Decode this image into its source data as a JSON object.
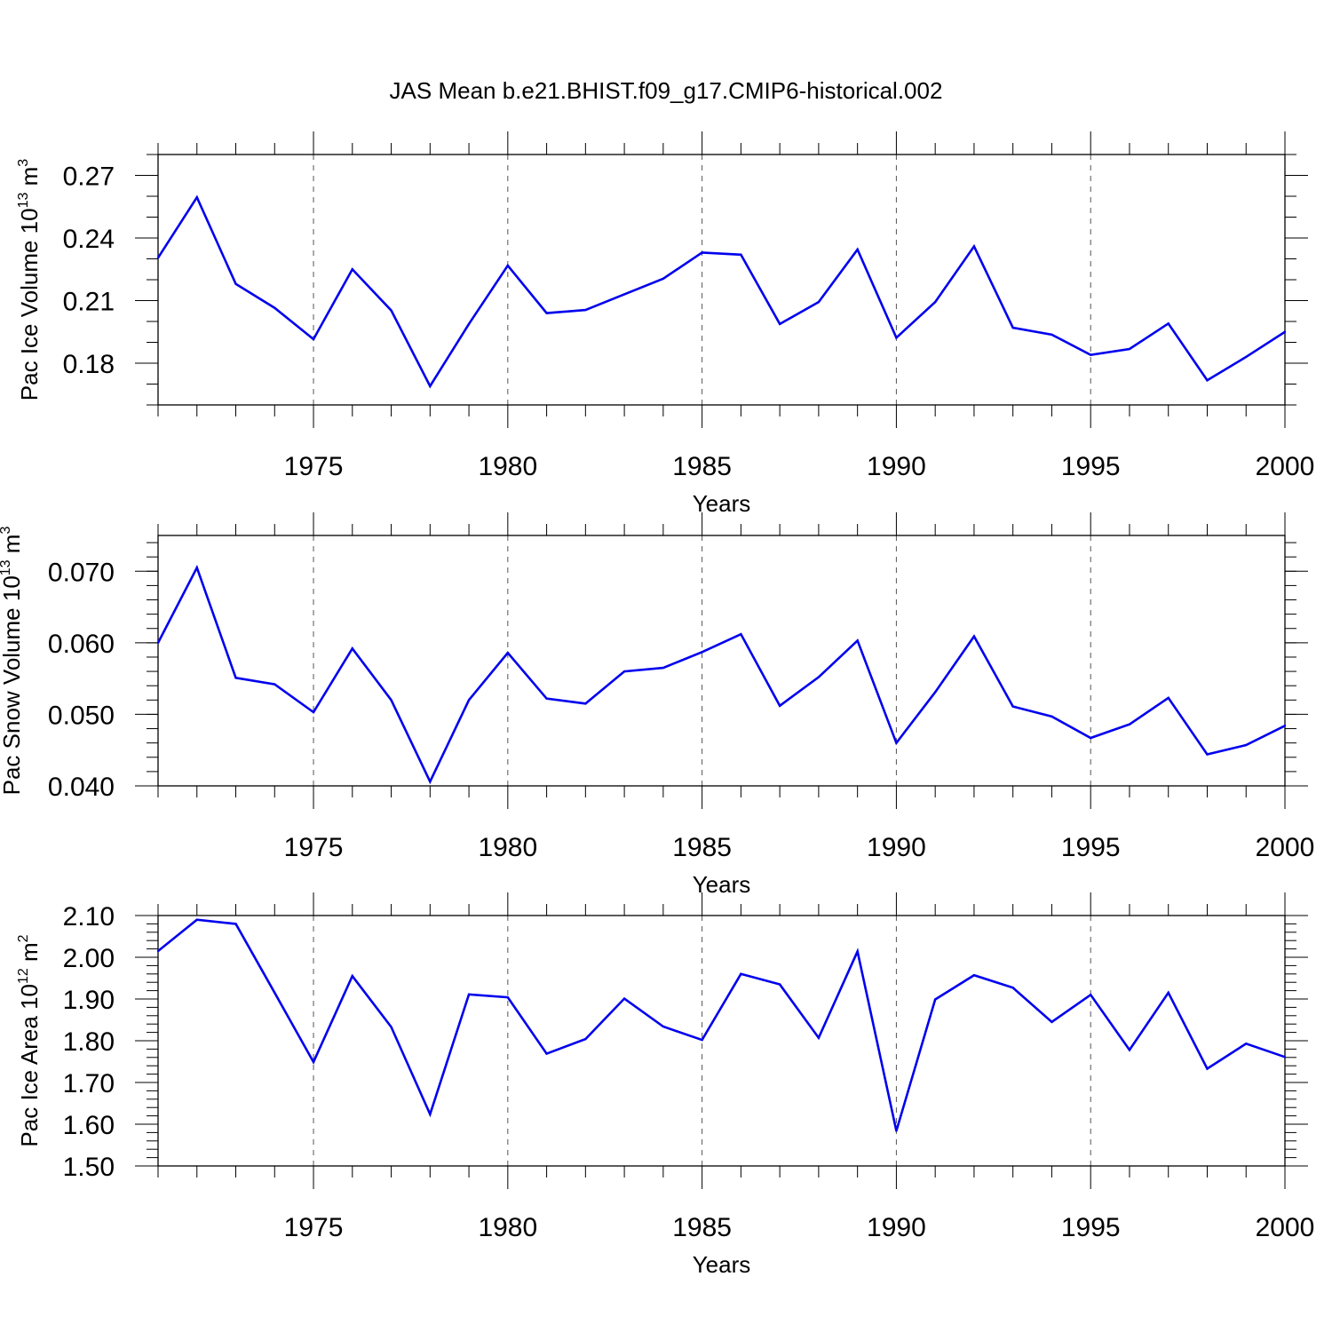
{
  "title": "JAS Mean b.e21.BHIST.f09_g17.CMIP6-historical.002",
  "line_color": "#0000ee",
  "chart_data": [
    {
      "type": "line",
      "xlabel": "Years",
      "ylabel": "Pac Ice Volume 10",
      "ylabel_sup": "13",
      "ylabel_tail": " m",
      "ylabel_tail_sup": "3",
      "xlim": [
        1971,
        2000
      ],
      "ylim": [
        0.16,
        0.28
      ],
      "xticks": [
        1975,
        1980,
        1985,
        1990,
        1995,
        2000
      ],
      "yticks": [
        0.18,
        0.21,
        0.24,
        0.27
      ],
      "yticklabels": [
        "0.18",
        "0.21",
        "0.24",
        "0.27"
      ],
      "yminor": 0.01,
      "x": [
        1971,
        1972,
        1973,
        1974,
        1975,
        1976,
        1977,
        1978,
        1979,
        1980,
        1981,
        1982,
        1983,
        1984,
        1985,
        1986,
        1987,
        1988,
        1989,
        1990,
        1991,
        1992,
        1993,
        1994,
        1995,
        1996,
        1997,
        1998,
        1999,
        2000
      ],
      "series": [
        {
          "values": [
            0.2305,
            0.2595,
            0.218,
            0.2065,
            0.1915,
            0.225,
            0.2053,
            0.169,
            0.1988,
            0.2268,
            0.204,
            0.2055,
            0.213,
            0.2205,
            0.233,
            0.232,
            0.1988,
            0.2093,
            0.2345,
            0.1922,
            0.2093,
            0.236,
            0.197,
            0.1937,
            0.184,
            0.1868,
            0.199,
            0.1718,
            0.183,
            0.195
          ]
        }
      ]
    },
    {
      "type": "line",
      "xlabel": "Years",
      "ylabel": "Pac Snow Volume 10",
      "ylabel_sup": "13",
      "ylabel_tail": " m",
      "ylabel_tail_sup": "3",
      "xlim": [
        1971,
        2000
      ],
      "ylim": [
        0.04,
        0.075
      ],
      "xticks": [
        1975,
        1980,
        1985,
        1990,
        1995,
        2000
      ],
      "yticks": [
        0.04,
        0.05,
        0.06,
        0.07
      ],
      "yticklabels": [
        "0.040",
        "0.050",
        "0.060",
        "0.070"
      ],
      "yminor": 0.002,
      "x": [
        1971,
        1972,
        1973,
        1974,
        1975,
        1976,
        1977,
        1978,
        1979,
        1980,
        1981,
        1982,
        1983,
        1984,
        1985,
        1986,
        1987,
        1988,
        1989,
        1990,
        1991,
        1992,
        1993,
        1994,
        1995,
        1996,
        1997,
        1998,
        1999,
        2000
      ],
      "series": [
        {
          "values": [
            0.06,
            0.0705,
            0.0551,
            0.0542,
            0.0503,
            0.0592,
            0.052,
            0.0406,
            0.052,
            0.0586,
            0.0522,
            0.0515,
            0.056,
            0.0565,
            0.0587,
            0.0612,
            0.0512,
            0.0552,
            0.0603,
            0.046,
            0.0531,
            0.0609,
            0.0511,
            0.0497,
            0.0467,
            0.0486,
            0.0523,
            0.0444,
            0.0457,
            0.0484
          ]
        }
      ]
    },
    {
      "type": "line",
      "xlabel": "Years",
      "ylabel": "Pac Ice Area 10",
      "ylabel_sup": "12",
      "ylabel_tail": " m",
      "ylabel_tail_sup": "2",
      "xlim": [
        1971,
        2000
      ],
      "ylim": [
        1.5,
        2.1
      ],
      "xticks": [
        1975,
        1980,
        1985,
        1990,
        1995,
        2000
      ],
      "yticks": [
        1.5,
        1.6,
        1.7,
        1.8,
        1.9,
        2.0,
        2.1
      ],
      "yticklabels": [
        "1.50",
        "1.60",
        "1.70",
        "1.80",
        "1.90",
        "2.00",
        "2.10"
      ],
      "yminor": 0.02,
      "x": [
        1971,
        1972,
        1973,
        1974,
        1975,
        1976,
        1977,
        1978,
        1979,
        1980,
        1981,
        1982,
        1983,
        1984,
        1985,
        1986,
        1987,
        1988,
        1989,
        1990,
        1991,
        1992,
        1993,
        1994,
        1995,
        1996,
        1997,
        1998,
        1999,
        2000
      ],
      "series": [
        {
          "values": [
            2.015,
            2.09,
            2.08,
            1.915,
            1.749,
            1.955,
            1.833,
            1.624,
            1.911,
            1.904,
            1.769,
            1.804,
            1.901,
            1.834,
            1.802,
            1.96,
            1.935,
            1.807,
            2.014,
            1.584,
            1.899,
            1.957,
            1.927,
            1.845,
            1.91,
            1.778,
            1.915,
            1.733,
            1.793,
            1.761
          ]
        }
      ]
    }
  ]
}
